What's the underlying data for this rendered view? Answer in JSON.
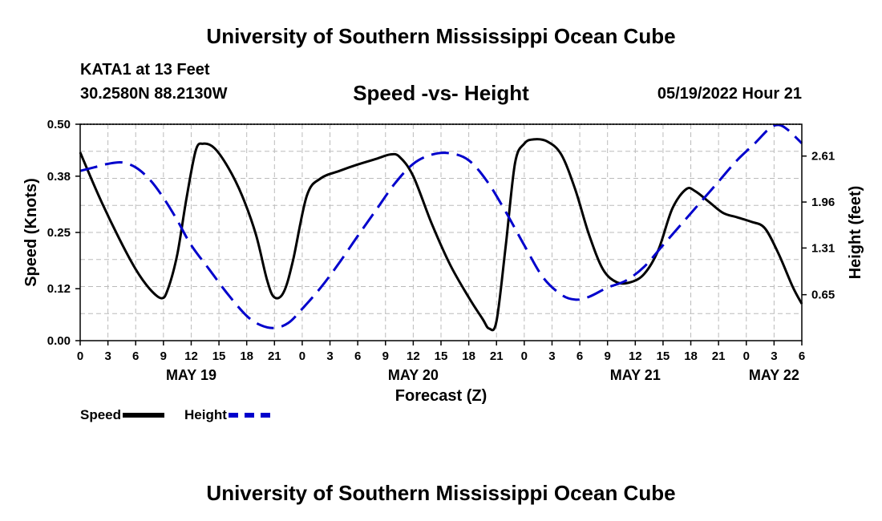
{
  "header": {
    "title": "University of Southern Mississippi Ocean Cube",
    "station": "KATA1 at 13 Feet",
    "coordinates": "30.2580N  88.2130W",
    "subtitle": "Speed -vs- Height",
    "datetime": "05/19/2022 Hour 21"
  },
  "footer": {
    "title": "University of Southern Mississippi Ocean Cube"
  },
  "legend": {
    "speed_label": "Speed",
    "height_label": "Height"
  },
  "colors": {
    "speed": "#000000",
    "height": "#0000cc",
    "grid": "#bbbbbb"
  },
  "chart_data": {
    "type": "line",
    "title": "Speed -vs- Height",
    "xlabel": "Forecast (Z)",
    "ylabel": "Speed (Knots)",
    "y2label": "Height (feet)",
    "xlim": [
      0,
      78
    ],
    "ylim": [
      0,
      0.5
    ],
    "y2lim": [
      0,
      3.06
    ],
    "grid": true,
    "x_tick_hours": [
      0,
      3,
      6,
      9,
      12,
      15,
      18,
      21,
      24,
      27,
      30,
      33,
      36,
      39,
      42,
      45,
      48,
      51,
      54,
      57,
      60,
      63,
      66,
      69,
      72,
      75,
      78
    ],
    "x_tick_labels": [
      "0",
      "3",
      "6",
      "9",
      "12",
      "15",
      "18",
      "21",
      "0",
      "3",
      "6",
      "9",
      "12",
      "15",
      "18",
      "21",
      "0",
      "3",
      "6",
      "9",
      "12",
      "15",
      "18",
      "21",
      "0",
      "3",
      "6"
    ],
    "day_labels": [
      {
        "hour": 12,
        "label": "MAY 19"
      },
      {
        "hour": 36,
        "label": "MAY 20"
      },
      {
        "hour": 60,
        "label": "MAY 21"
      },
      {
        "hour": 75,
        "label": "MAY 22"
      }
    ],
    "y_ticks": [
      0.0,
      0.12,
      0.25,
      0.38,
      0.5
    ],
    "y_tick_labels": [
      "0.00",
      "0.12",
      "0.25",
      "0.38",
      "0.50"
    ],
    "y2_ticks": [
      0.65,
      1.31,
      1.96,
      2.61
    ],
    "y2_tick_labels": [
      "0.65",
      "1.31",
      "1.96",
      "2.61"
    ],
    "series": [
      {
        "name": "Speed",
        "axis": "left",
        "style": "solid",
        "x": [
          0,
          2,
          4,
          6,
          7.5,
          8.8,
          9.5,
          10.5,
          11.5,
          12.5,
          13.3,
          14.5,
          16,
          17.5,
          19,
          20.2,
          21,
          22,
          23,
          24.5,
          26,
          28,
          30,
          32,
          33.5,
          34.5,
          36,
          38,
          40,
          42,
          43.5,
          44.2,
          45,
          46,
          47,
          48,
          49,
          50.5,
          52,
          53.5,
          55,
          56.5,
          58,
          59.5,
          61,
          62.5,
          64,
          65.5,
          66.5,
          68,
          69.5,
          71,
          72.5,
          74,
          75.5,
          77,
          78
        ],
        "values": [
          0.435,
          0.335,
          0.245,
          0.165,
          0.12,
          0.098,
          0.12,
          0.2,
          0.33,
          0.44,
          0.455,
          0.445,
          0.4,
          0.335,
          0.245,
          0.14,
          0.1,
          0.112,
          0.185,
          0.335,
          0.375,
          0.392,
          0.407,
          0.42,
          0.43,
          0.425,
          0.38,
          0.27,
          0.175,
          0.1,
          0.05,
          0.028,
          0.045,
          0.22,
          0.41,
          0.455,
          0.465,
          0.46,
          0.43,
          0.35,
          0.245,
          0.165,
          0.135,
          0.135,
          0.155,
          0.21,
          0.305,
          0.35,
          0.345,
          0.32,
          0.295,
          0.285,
          0.275,
          0.26,
          0.2,
          0.125,
          0.085
        ]
      },
      {
        "name": "Height",
        "axis": "right",
        "style": "dashed",
        "x": [
          0,
          1.5,
          3,
          4.5,
          6,
          7.5,
          9,
          10.5,
          12,
          14,
          16,
          18,
          19.5,
          21,
          22.5,
          24,
          26,
          28,
          30,
          32,
          34,
          36,
          38,
          40,
          42,
          44,
          46,
          48,
          50,
          52,
          53.5,
          55,
          57,
          59,
          61,
          63,
          65,
          67,
          69,
          71,
          73,
          74.5,
          75.5,
          76.5,
          78
        ],
        "values": [
          2.4,
          2.45,
          2.5,
          2.52,
          2.45,
          2.28,
          2.02,
          1.7,
          1.35,
          1.0,
          0.65,
          0.35,
          0.22,
          0.18,
          0.25,
          0.45,
          0.75,
          1.1,
          1.48,
          1.85,
          2.22,
          2.5,
          2.63,
          2.65,
          2.55,
          2.25,
          1.82,
          1.35,
          0.9,
          0.65,
          0.58,
          0.62,
          0.75,
          0.85,
          1.05,
          1.35,
          1.65,
          1.95,
          2.25,
          2.55,
          2.8,
          3.0,
          3.05,
          2.98,
          2.79
        ]
      }
    ]
  }
}
